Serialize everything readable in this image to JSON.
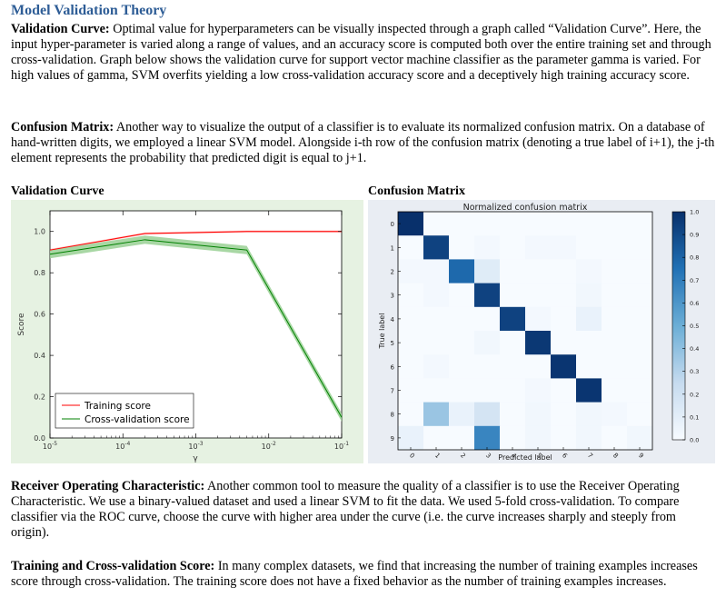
{
  "section_title": "Model Validation Theory",
  "paragraphs": {
    "validation_curve": {
      "heading": "Validation Curve:",
      "body": " Optimal value for hyperparameters can be visually inspected through a graph called “Validation Curve”. Here, the input hyper-parameter is varied along a range of values, and an accuracy score is computed both over the entire training set and through cross-validation.  Graph below shows the validation curve for support vector machine classifier as the parameter gamma is varied. For high values of gamma, SVM overfits yielding a low cross-validation accuracy score and a deceptively high training accuracy score."
    },
    "confusion_matrix": {
      "heading": "Confusion Matrix:",
      "body": " Another way to visualize the output of a classifier is to evaluate its normalized confusion matrix.  On a database of hand-written digits, we employed a linear SVM model. Alongside i-th row of the confusion matrix (denoting a true label of i+1), the j-th element represents the probability that predicted digit is equal to j+1."
    },
    "roc": {
      "heading": "Receiver Operating Characteristic:",
      "body": " Another common tool to measure the quality of a classifier is to use the Receiver Operating Characteristic.  We use a binary-valued dataset and used a linear SVM to fit the data. We used 5-fold cross-validation.  To compare classifier via the ROC curve, choose the curve with higher area under the curve (i.e. the curve increases sharply and steeply from origin)."
    },
    "training_cv": {
      "heading": "Training and Cross-validation Score:",
      "body": " In many complex datasets, we find that increasing the number of training examples increases score through cross-validation.  The training score does not have a fixed behavior as the number of training examples increases."
    }
  },
  "figures": {
    "validation_label": "Validation Curve",
    "confusion_label": "Confusion Matrix"
  },
  "chart_data": [
    {
      "type": "line",
      "title": "",
      "xlabel": "γ",
      "ylabel": "Score",
      "x_scale": "log",
      "xlim": [
        1e-05,
        0.1
      ],
      "ylim": [
        0.0,
        1.1
      ],
      "x_ticks": [
        1e-05,
        0.0001,
        0.001,
        0.01,
        0.1
      ],
      "x_tick_labels": [
        "10-5",
        "10-4",
        "10-3",
        "10-2",
        "10-1"
      ],
      "y_ticks": [
        0.0,
        0.2,
        0.4,
        0.6,
        0.8,
        1.0
      ],
      "y_tick_labels": [
        "0.0",
        "0.2",
        "0.4",
        "0.6",
        "0.8",
        "1.0"
      ],
      "grid": false,
      "legend": "bottom-left",
      "background": "#e6f2e2",
      "series": [
        {
          "name": "Training score",
          "color": "#ff0000",
          "x": [
            1e-05,
            0.0002,
            0.005,
            0.1
          ],
          "y": [
            0.91,
            0.99,
            1.0,
            1.0
          ],
          "band": 0.005
        },
        {
          "name": "Cross-validation score",
          "color": "#008000",
          "band_color": "#9fd39a",
          "x": [
            1e-05,
            0.0002,
            0.005,
            0.1
          ],
          "y": [
            0.89,
            0.96,
            0.91,
            0.1
          ],
          "band": 0.02
        }
      ]
    },
    {
      "type": "heatmap",
      "title": "Normalized confusion matrix",
      "xlabel": "Predicted label",
      "ylabel": "True label",
      "x_tick_labels": [
        "0",
        "1",
        "2",
        "3",
        "4",
        "5",
        "6",
        "7",
        "8",
        "9"
      ],
      "y_tick_labels": [
        "0",
        "1",
        "2",
        "3",
        "4",
        "5",
        "6",
        "7",
        "8",
        "9"
      ],
      "colorbar_ticks": [
        "0.0",
        "0.1",
        "0.2",
        "0.3",
        "0.4",
        "0.5",
        "0.6",
        "0.7",
        "0.8",
        "0.9",
        "1.0"
      ],
      "colormap": "Blues",
      "values": [
        [
          1.0,
          0.0,
          0.0,
          0.0,
          0.0,
          0.0,
          0.0,
          0.0,
          0.0,
          0.0
        ],
        [
          0.0,
          0.93,
          0.0,
          0.02,
          0.0,
          0.02,
          0.02,
          0.0,
          0.0,
          0.0
        ],
        [
          0.02,
          0.02,
          0.78,
          0.12,
          0.0,
          0.0,
          0.0,
          0.02,
          0.0,
          0.0
        ],
        [
          0.0,
          0.02,
          0.0,
          0.93,
          0.0,
          0.0,
          0.0,
          0.03,
          0.0,
          0.0
        ],
        [
          0.0,
          0.0,
          0.0,
          0.0,
          0.93,
          0.02,
          0.0,
          0.07,
          0.0,
          0.0
        ],
        [
          0.0,
          0.0,
          0.0,
          0.03,
          0.0,
          0.97,
          0.0,
          0.0,
          0.0,
          0.0
        ],
        [
          0.0,
          0.02,
          0.0,
          0.0,
          0.0,
          0.0,
          0.98,
          0.0,
          0.0,
          0.0
        ],
        [
          0.0,
          0.0,
          0.0,
          0.0,
          0.0,
          0.02,
          0.0,
          0.98,
          0.0,
          0.0
        ],
        [
          0.0,
          0.37,
          0.07,
          0.18,
          0.0,
          0.03,
          0.0,
          0.03,
          0.02,
          0.0
        ],
        [
          0.07,
          0.0,
          0.0,
          0.67,
          0.0,
          0.03,
          0.0,
          0.03,
          0.0,
          0.03
        ]
      ]
    }
  ]
}
